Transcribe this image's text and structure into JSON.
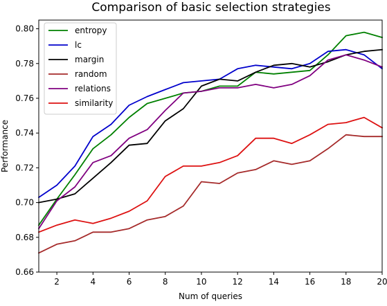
{
  "chart_data": {
    "type": "line",
    "title": "Comparison of basic selection strategies",
    "xlabel": "Num of queries",
    "ylabel": "Performance",
    "xlim": [
      1,
      20
    ],
    "ylim": [
      0.66,
      0.805
    ],
    "xticks": [
      2,
      4,
      6,
      8,
      10,
      12,
      14,
      16,
      18,
      20
    ],
    "yticks": [
      0.66,
      0.68,
      0.7,
      0.72,
      0.74,
      0.76,
      0.78,
      0.8
    ],
    "ytick_labels": [
      "0.66",
      "0.68",
      "0.70",
      "0.72",
      "0.74",
      "0.76",
      "0.78",
      "0.80"
    ],
    "grid": false,
    "legend_position": "top-left",
    "x": [
      1,
      2,
      3,
      4,
      5,
      6,
      7,
      8,
      9,
      10,
      11,
      12,
      13,
      14,
      15,
      16,
      17,
      18,
      19,
      20
    ],
    "series": [
      {
        "name": "entropy",
        "color": "#008000",
        "values": [
          0.687,
          0.702,
          0.716,
          0.731,
          0.739,
          0.749,
          0.757,
          0.76,
          0.763,
          0.764,
          0.767,
          0.767,
          0.775,
          0.774,
          0.775,
          0.776,
          0.785,
          0.796,
          0.798,
          0.795
        ]
      },
      {
        "name": "lc",
        "color": "#0000cc",
        "values": [
          0.703,
          0.71,
          0.721,
          0.738,
          0.745,
          0.756,
          0.761,
          0.765,
          0.769,
          0.77,
          0.771,
          0.777,
          0.779,
          0.778,
          0.777,
          0.78,
          0.787,
          0.788,
          0.785,
          0.777
        ]
      },
      {
        "name": "margin",
        "color": "#000000",
        "values": [
          0.7,
          0.702,
          0.705,
          0.714,
          0.723,
          0.733,
          0.734,
          0.747,
          0.754,
          0.767,
          0.771,
          0.77,
          0.775,
          0.779,
          0.78,
          0.778,
          0.781,
          0.785,
          0.787,
          0.788
        ]
      },
      {
        "name": "random",
        "color": "#a52a2a",
        "values": [
          0.671,
          0.676,
          0.678,
          0.683,
          0.683,
          0.685,
          0.69,
          0.692,
          0.698,
          0.712,
          0.711,
          0.717,
          0.719,
          0.724,
          0.722,
          0.724,
          0.731,
          0.739,
          0.738,
          0.738
        ]
      },
      {
        "name": "relations",
        "color": "#800080",
        "values": [
          0.685,
          0.701,
          0.709,
          0.723,
          0.727,
          0.737,
          0.742,
          0.753,
          0.763,
          0.764,
          0.766,
          0.766,
          0.768,
          0.766,
          0.768,
          0.773,
          0.782,
          0.785,
          0.782,
          0.778
        ]
      },
      {
        "name": "similarity",
        "color": "#dd1111",
        "values": [
          0.683,
          0.687,
          0.69,
          0.688,
          0.691,
          0.695,
          0.701,
          0.715,
          0.721,
          0.721,
          0.723,
          0.727,
          0.737,
          0.737,
          0.734,
          0.739,
          0.745,
          0.746,
          0.749,
          0.743
        ]
      }
    ]
  }
}
